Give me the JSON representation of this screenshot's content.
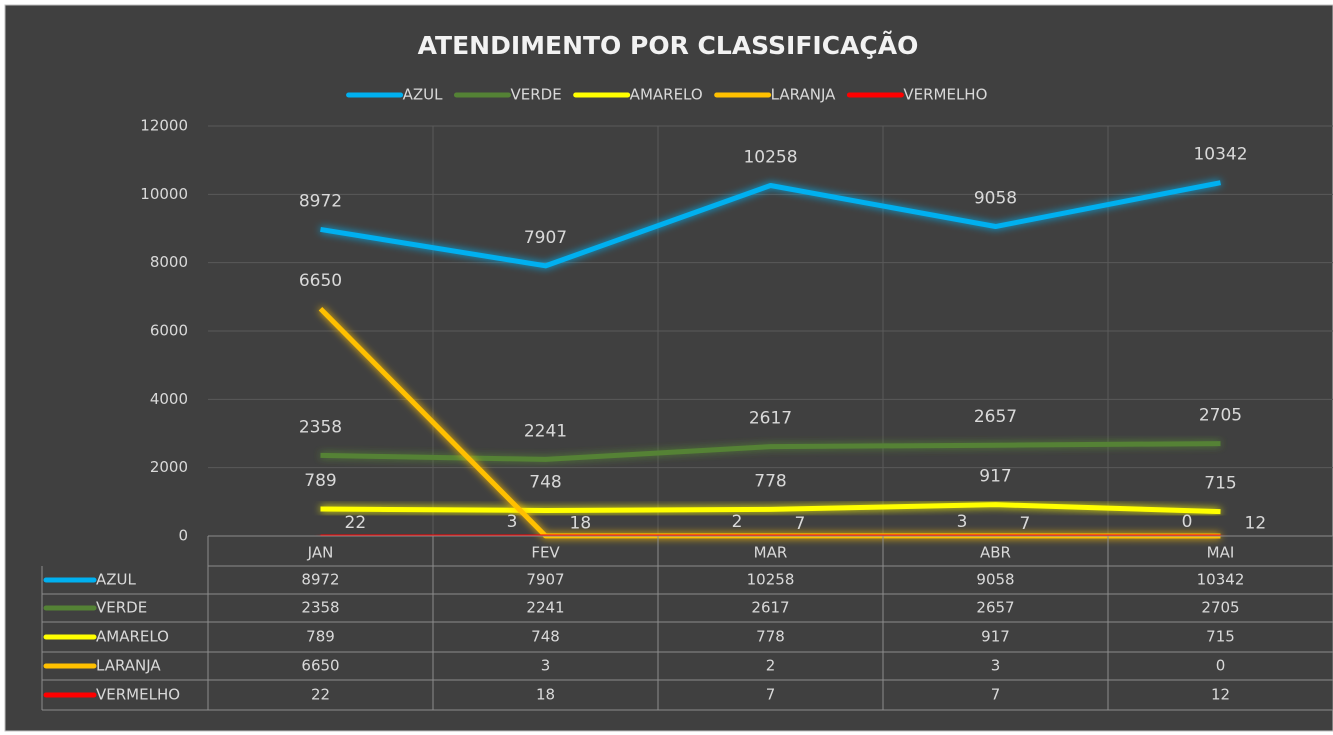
{
  "chart_data": {
    "type": "line",
    "title": "ATENDIMENTO POR CLASSIFICAÇÃO",
    "categories": [
      "JAN",
      "FEV",
      "MAR",
      "ABR",
      "MAI"
    ],
    "series": [
      {
        "name": "AZUL",
        "color": "#00b0f0",
        "values": [
          8972,
          7907,
          10258,
          9058,
          10342
        ]
      },
      {
        "name": "VERDE",
        "color": "#548235",
        "values": [
          2358,
          2241,
          2617,
          2657,
          2705
        ]
      },
      {
        "name": "AMARELO",
        "color": "#ffff00",
        "values": [
          789,
          748,
          778,
          917,
          715
        ]
      },
      {
        "name": "LARANJA",
        "color": "#ffc000",
        "values": [
          6650,
          3,
          2,
          3,
          0
        ]
      },
      {
        "name": "VERMELHO",
        "color": "#ff0000",
        "values": [
          22,
          18,
          7,
          7,
          12
        ]
      }
    ],
    "ylim": [
      0,
      12000
    ],
    "yticks": [
      0,
      2000,
      4000,
      6000,
      8000,
      10000,
      12000
    ],
    "grid": true,
    "legend": "top",
    "data_table": true
  }
}
